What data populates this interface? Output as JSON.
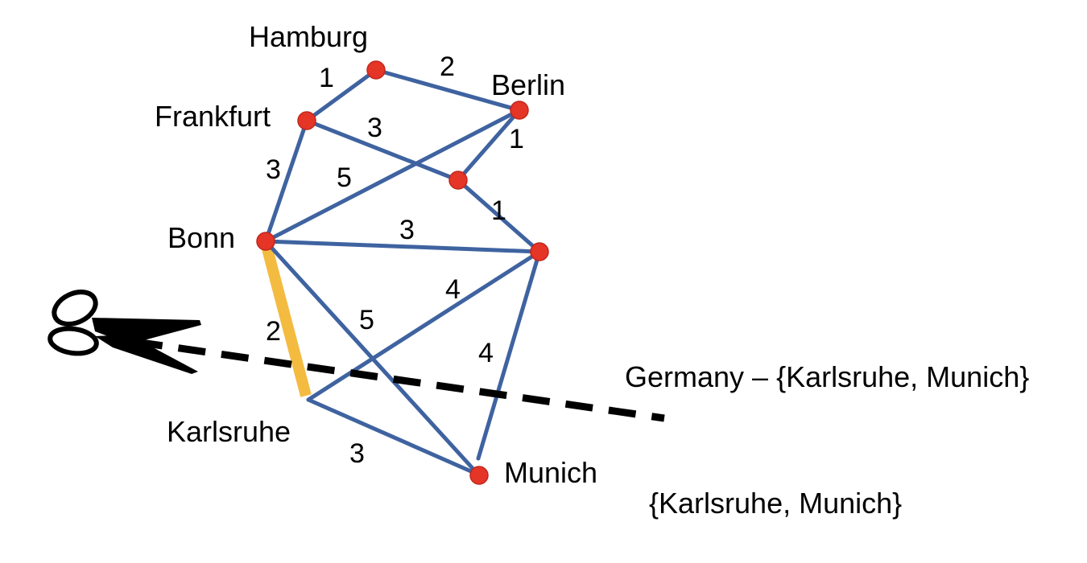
{
  "diagram": {
    "cities": {
      "hamburg": "Hamburg",
      "berlin": "Berlin",
      "frankfurt": "Frankfurt",
      "bonn": "Bonn",
      "karlsruhe": "Karlsruhe",
      "munich": "Munich"
    },
    "weights": {
      "frankfurt_hamburg": "1",
      "hamburg_berlin": "2",
      "frankfurt_mid": "3",
      "berlin_mid": "1",
      "frankfurt_bonn": "3",
      "bonn_berlin": "5",
      "mid_right": "1",
      "bonn_right": "3",
      "karlsruhe_right": "4",
      "bonn_karlsruhe": "2",
      "bonn_munich": "5",
      "right_munich": "4",
      "karlsruhe_munich": "3"
    },
    "highlight_color": "#f4bb41",
    "edge_color": "#3f63a0",
    "node_color": "#e53527"
  },
  "labels": {
    "remaining_set": "Germany – {Karlsruhe, Munich}",
    "cut_set": "{Karlsruhe, Munich}"
  },
  "icons": {
    "scissors": "scissors-icon"
  }
}
